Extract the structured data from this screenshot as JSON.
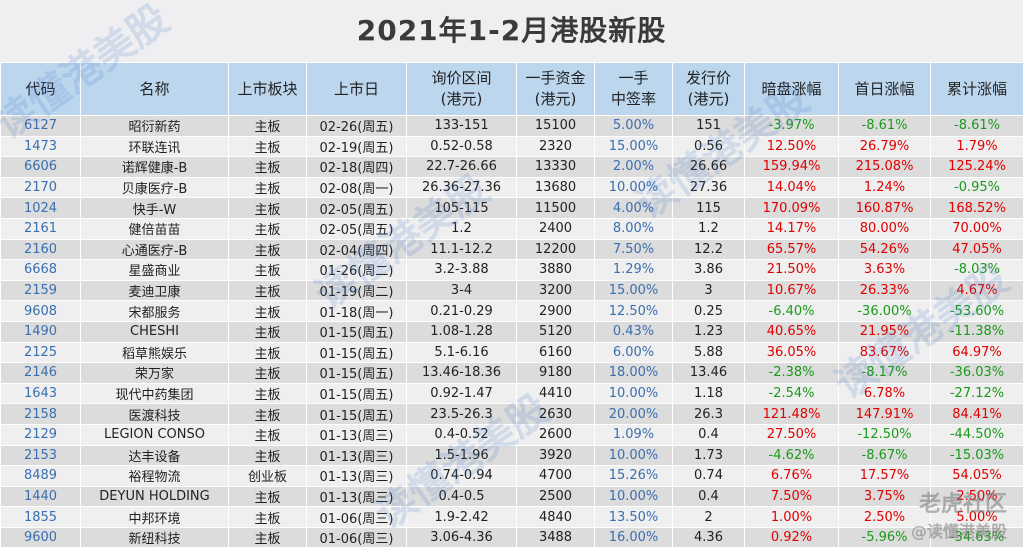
{
  "title": "2021年1-2月港股新股",
  "chart_data": {
    "type": "table",
    "columns": [
      [
        "代码"
      ],
      [
        "名称"
      ],
      [
        "上市板块"
      ],
      [
        "上市日"
      ],
      [
        "询价区间",
        "(港元)"
      ],
      [
        "一手资金",
        "(港元)"
      ],
      [
        "一手",
        "中签率"
      ],
      [
        "发行价",
        "(港元)"
      ],
      [
        "暗盘涨幅"
      ],
      [
        "首日涨幅"
      ],
      [
        "累计涨幅"
      ]
    ],
    "rows": [
      [
        "6127",
        "昭衍新药",
        "主板",
        "02-26(周五)",
        "133-151",
        "15100",
        "5.00%",
        "151",
        "-3.97%",
        "-8.61%",
        "-8.61%"
      ],
      [
        "1473",
        "环联连讯",
        "主板",
        "02-19(周五)",
        "0.52-0.58",
        "2320",
        "15.00%",
        "0.56",
        "12.50%",
        "26.79%",
        "1.79%"
      ],
      [
        "6606",
        "诺辉健康-B",
        "主板",
        "02-18(周四)",
        "22.7-26.66",
        "13330",
        "2.00%",
        "26.66",
        "159.94%",
        "215.08%",
        "125.24%"
      ],
      [
        "2170",
        "贝康医疗-B",
        "主板",
        "02-08(周一)",
        "26.36-27.36",
        "13680",
        "10.00%",
        "27.36",
        "14.04%",
        "1.24%",
        "-0.95%"
      ],
      [
        "1024",
        "快手-W",
        "主板",
        "02-05(周五)",
        "105-115",
        "11500",
        "4.00%",
        "115",
        "170.09%",
        "160.87%",
        "168.52%"
      ],
      [
        "2161",
        "健倍苗苗",
        "主板",
        "02-05(周五)",
        "1.2",
        "2400",
        "8.00%",
        "1.2",
        "14.17%",
        "80.00%",
        "70.00%"
      ],
      [
        "2160",
        "心通医疗-B",
        "主板",
        "02-04(周四)",
        "11.1-12.2",
        "12200",
        "7.50%",
        "12.2",
        "65.57%",
        "54.26%",
        "47.05%"
      ],
      [
        "6668",
        "星盛商业",
        "主板",
        "01-26(周二)",
        "3.2-3.88",
        "3880",
        "1.29%",
        "3.86",
        "21.50%",
        "3.63%",
        "-8.03%"
      ],
      [
        "2159",
        "麦迪卫康",
        "主板",
        "01-19(周二)",
        "3-4",
        "3200",
        "15.00%",
        "3",
        "10.67%",
        "26.33%",
        "4.67%"
      ],
      [
        "9608",
        "宋都服务",
        "主板",
        "01-18(周一)",
        "0.21-0.29",
        "2900",
        "12.50%",
        "0.25",
        "-6.40%",
        "-36.00%",
        "-53.60%"
      ],
      [
        "1490",
        "CHESHI",
        "主板",
        "01-15(周五)",
        "1.08-1.28",
        "5120",
        "0.43%",
        "1.23",
        "40.65%",
        "21.95%",
        "-11.38%"
      ],
      [
        "2125",
        "稻草熊娱乐",
        "主板",
        "01-15(周五)",
        "5.1-6.16",
        "6160",
        "6.00%",
        "5.88",
        "36.05%",
        "83.67%",
        "64.97%"
      ],
      [
        "2146",
        "荣万家",
        "主板",
        "01-15(周五)",
        "13.46-18.36",
        "9180",
        "18.00%",
        "13.46",
        "-2.38%",
        "-8.17%",
        "-36.03%"
      ],
      [
        "1643",
        "现代中药集团",
        "主板",
        "01-15(周五)",
        "0.92-1.47",
        "4410",
        "10.00%",
        "1.18",
        "-2.54%",
        "6.78%",
        "-27.12%"
      ],
      [
        "2158",
        "医渡科技",
        "主板",
        "01-15(周五)",
        "23.5-26.3",
        "2630",
        "20.00%",
        "26.3",
        "121.48%",
        "147.91%",
        "84.41%"
      ],
      [
        "2129",
        "LEGION CONSO",
        "主板",
        "01-13(周三)",
        "0.4-0.52",
        "2600",
        "1.09%",
        "0.4",
        "27.50%",
        "-12.50%",
        "-44.50%"
      ],
      [
        "2153",
        "达丰设备",
        "主板",
        "01-13(周三)",
        "1.5-1.96",
        "3920",
        "10.00%",
        "1.73",
        "-4.62%",
        "-8.67%",
        "-15.03%"
      ],
      [
        "8489",
        "裕程物流",
        "创业板",
        "01-13(周三)",
        "0.74-0.94",
        "4700",
        "15.26%",
        "0.74",
        "6.76%",
        "17.57%",
        "54.05%"
      ],
      [
        "1440",
        "DEYUN HOLDING",
        "主板",
        "01-13(周三)",
        "0.4-0.5",
        "2500",
        "10.00%",
        "0.4",
        "7.50%",
        "3.75%",
        "2.50%"
      ],
      [
        "1855",
        "中邦环境",
        "主板",
        "01-06(周三)",
        "1.9-2.42",
        "4840",
        "13.50%",
        "2",
        "1.00%",
        "2.50%",
        "5.00%"
      ],
      [
        "9600",
        "新纽科技",
        "主板",
        "01-06(周三)",
        "3.06-4.36",
        "3488",
        "16.00%",
        "4.36",
        "0.92%",
        "-5.96%",
        "-34.63%"
      ]
    ]
  },
  "watermark": {
    "text": "读懂港美股",
    "brand_line1": "老虎社区",
    "brand_line2": "@读懂港美股"
  },
  "colors": {
    "header_bg": "#bcd6ee",
    "row_odd": "#dcdcdc",
    "row_even": "#efefef",
    "positive": "#e00000",
    "negative": "#1a9a1a",
    "code_text": "#3a6fb0"
  }
}
